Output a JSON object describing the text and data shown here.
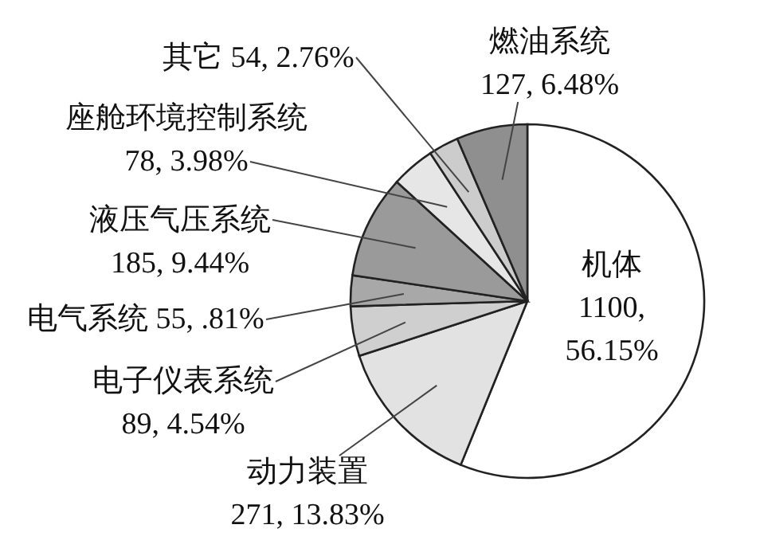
{
  "chart_data": {
    "type": "pie",
    "categories": [
      "机体",
      "动力装置",
      "电子仪表系统",
      "电气系统",
      "液压气压系统",
      "座舱环境控制系统",
      "其它",
      "燃油系统"
    ],
    "values": [
      1100,
      271,
      89,
      55,
      185,
      78,
      54,
      127
    ],
    "colors": [
      "#ffffff",
      "#e2e2e2",
      "#cfcfcf",
      "#a8a8a8",
      "#9a9a9a",
      "#e6e6e6",
      "#cccccc",
      "#8f8f8f"
    ],
    "value_labels": [
      "1100, 56.15%",
      "271, 13.83%",
      "89, 4.54%",
      "55, .81%",
      "185, 9.44%",
      "78, 3.98%",
      "54, 2.76%",
      "127, 6.48%"
    ]
  }
}
